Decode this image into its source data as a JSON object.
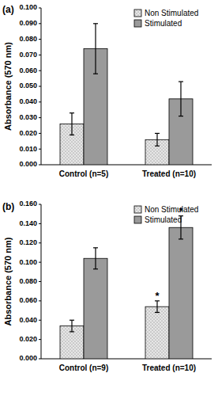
{
  "chart_data": [
    {
      "type": "bar",
      "title": "(a)",
      "y_label": "Absorbance (570 nm)",
      "categories": [
        "Control (n=5)",
        "Treated (n=10)"
      ],
      "series": [
        {
          "name": "Non Stimulated",
          "color": "#e6e6e6",
          "values": [
            0.026,
            0.016
          ],
          "errors": [
            0.007,
            0.004
          ]
        },
        {
          "name": "Stimulated",
          "color": "#9a9a9a",
          "values": [
            0.074,
            0.042
          ],
          "errors": [
            0.016,
            0.011
          ]
        }
      ],
      "ylim": [
        0,
        0.1
      ],
      "yticks": [
        {
          "value": 0,
          "label": "0.000"
        },
        {
          "value": 0.01,
          "label": "0.010"
        },
        {
          "value": 0.02,
          "label": "0.020"
        },
        {
          "value": 0.03,
          "label": "0.030"
        },
        {
          "value": 0.04,
          "label": "0.040"
        },
        {
          "value": 0.05,
          "label": "0.050"
        },
        {
          "value": 0.06,
          "label": "0.060"
        },
        {
          "value": 0.07,
          "label": "0.070"
        },
        {
          "value": 0.08,
          "label": "0.080"
        },
        {
          "value": 0.09,
          "label": "0.090"
        },
        {
          "value": 0.1,
          "label": "0.100"
        }
      ],
      "grid": false,
      "legend": "upper right"
    },
    {
      "type": "bar",
      "title": "(b)",
      "y_label": "Absorbance (570 nm)",
      "categories": [
        "Control (n=9)",
        "Treated (n=10)"
      ],
      "series": [
        {
          "name": "Non Stimulated",
          "color": "#e6e6e6",
          "values": [
            0.034,
            0.054
          ],
          "errors": [
            0.006,
            0.006
          ],
          "annotations": [
            null,
            "*"
          ]
        },
        {
          "name": "Stimulated",
          "color": "#9a9a9a",
          "values": [
            0.104,
            0.136
          ],
          "errors": [
            0.011,
            0.012
          ],
          "annotations": [
            null,
            "*"
          ]
        }
      ],
      "ylim": [
        0,
        0.16
      ],
      "yticks": [
        {
          "value": 0,
          "label": "0.000"
        },
        {
          "value": 0.02,
          "label": "0.020"
        },
        {
          "value": 0.04,
          "label": "0.040"
        },
        {
          "value": 0.06,
          "label": "0.060"
        },
        {
          "value": 0.08,
          "label": "0.080"
        },
        {
          "value": 0.1,
          "label": "0.100"
        },
        {
          "value": 0.12,
          "label": "0.120"
        },
        {
          "value": 0.14,
          "label": "0.140"
        },
        {
          "value": 0.16,
          "label": "0.160"
        }
      ],
      "grid": false,
      "legend": "upper right"
    }
  ]
}
